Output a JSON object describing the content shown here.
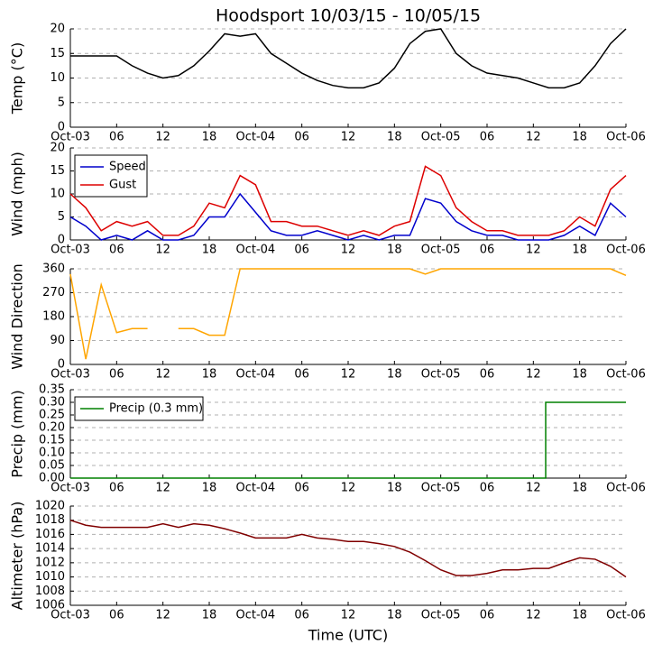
{
  "chart_data": [
    {
      "type": "line",
      "title": "Hoodsport 10/03/15 - 10/05/15",
      "ylabel": "Temp (°C)",
      "x": [
        0,
        2,
        4,
        6,
        8,
        10,
        12,
        14,
        16,
        18,
        20,
        22,
        24,
        26,
        28,
        30,
        32,
        34,
        36,
        38,
        40,
        42,
        44,
        46,
        48,
        50,
        52,
        54,
        56,
        58,
        60,
        62,
        64,
        66,
        68,
        70,
        72
      ],
      "series": [
        {
          "name": "Temp",
          "color": "#000000",
          "values": [
            14.5,
            14.5,
            14.5,
            14.5,
            12.5,
            11,
            10,
            10.5,
            12.5,
            15.5,
            19,
            18.5,
            19,
            15,
            13,
            11,
            9.5,
            8.5,
            8,
            8,
            9,
            12,
            17,
            19.5,
            20,
            15,
            12.5,
            11,
            10.5,
            10,
            9,
            8,
            8,
            9,
            12.5,
            17,
            20
          ]
        }
      ],
      "xlim": [
        0,
        72
      ],
      "xticks": [
        {
          "value": 0,
          "label": "Oct-03"
        },
        {
          "value": 6,
          "label": "06"
        },
        {
          "value": 12,
          "label": "12"
        },
        {
          "value": 18,
          "label": "18"
        },
        {
          "value": 24,
          "label": "Oct-04"
        },
        {
          "value": 30,
          "label": "06"
        },
        {
          "value": 36,
          "label": "12"
        },
        {
          "value": 42,
          "label": "18"
        },
        {
          "value": 48,
          "label": "Oct-05"
        },
        {
          "value": 54,
          "label": "06"
        },
        {
          "value": 60,
          "label": "12"
        },
        {
          "value": 66,
          "label": "18"
        },
        {
          "value": 72,
          "label": "Oct-06"
        }
      ],
      "ylim": [
        0,
        20
      ],
      "yticks": [
        0,
        5,
        10,
        15,
        20
      ],
      "grid": true
    },
    {
      "type": "line",
      "ylabel": "Wind (mph)",
      "x": [
        0,
        2,
        4,
        6,
        8,
        10,
        12,
        14,
        16,
        18,
        20,
        22,
        24,
        26,
        28,
        30,
        32,
        34,
        36,
        38,
        40,
        42,
        44,
        46,
        48,
        50,
        52,
        54,
        56,
        58,
        60,
        62,
        64,
        66,
        68,
        70,
        72
      ],
      "series": [
        {
          "name": "Speed",
          "color": "#0000cc",
          "values": [
            5,
            3,
            0,
            1,
            0,
            2,
            0,
            0,
            1,
            5,
            5,
            10,
            6,
            2,
            1,
            1,
            2,
            1,
            0,
            1,
            0,
            1,
            1,
            9,
            8,
            4,
            2,
            1,
            1,
            0,
            0,
            0,
            1,
            3,
            1,
            8,
            5
          ]
        },
        {
          "name": "Gust",
          "color": "#dd0000",
          "values": [
            10,
            7,
            2,
            4,
            3,
            4,
            1,
            1,
            3,
            8,
            7,
            14,
            12,
            4,
            4,
            3,
            3,
            2,
            1,
            2,
            1,
            3,
            4,
            16,
            14,
            7,
            4,
            2,
            2,
            1,
            1,
            1,
            2,
            5,
            3,
            11,
            14
          ]
        }
      ],
      "xlim": [
        0,
        72
      ],
      "xticks": [
        {
          "value": 0,
          "label": "Oct-03"
        },
        {
          "value": 6,
          "label": "06"
        },
        {
          "value": 12,
          "label": "12"
        },
        {
          "value": 18,
          "label": "18"
        },
        {
          "value": 24,
          "label": "Oct-04"
        },
        {
          "value": 30,
          "label": "06"
        },
        {
          "value": 36,
          "label": "12"
        },
        {
          "value": 42,
          "label": "18"
        },
        {
          "value": 48,
          "label": "Oct-05"
        },
        {
          "value": 54,
          "label": "06"
        },
        {
          "value": 60,
          "label": "12"
        },
        {
          "value": 66,
          "label": "18"
        },
        {
          "value": 72,
          "label": "Oct-06"
        }
      ],
      "ylim": [
        0,
        20
      ],
      "yticks": [
        0,
        5,
        10,
        15,
        20
      ],
      "grid": true,
      "legend": "upper left"
    },
    {
      "type": "line",
      "ylabel": "Wind Direction",
      "x": [
        0,
        2,
        4,
        6,
        8,
        10,
        12,
        14,
        16,
        18,
        20,
        22,
        24,
        26,
        28,
        30,
        32,
        34,
        36,
        38,
        40,
        42,
        44,
        46,
        48,
        50,
        52,
        54,
        56,
        58,
        60,
        62,
        64,
        66,
        68,
        70,
        72
      ],
      "series": [
        {
          "name": "Direction",
          "color": "#ffa500",
          "values": [
            340,
            20,
            300,
            120,
            135,
            135,
            null,
            135,
            135,
            110,
            110,
            360,
            360,
            360,
            360,
            360,
            360,
            360,
            360,
            360,
            360,
            360,
            360,
            340,
            360,
            360,
            360,
            360,
            360,
            360,
            360,
            360,
            360,
            360,
            360,
            360,
            335
          ]
        }
      ],
      "xlim": [
        0,
        72
      ],
      "xticks": [
        {
          "value": 0,
          "label": "Oct-03"
        },
        {
          "value": 6,
          "label": "06"
        },
        {
          "value": 12,
          "label": "12"
        },
        {
          "value": 18,
          "label": "18"
        },
        {
          "value": 24,
          "label": "Oct-04"
        },
        {
          "value": 30,
          "label": "06"
        },
        {
          "value": 36,
          "label": "12"
        },
        {
          "value": 42,
          "label": "18"
        },
        {
          "value": 48,
          "label": "Oct-05"
        },
        {
          "value": 54,
          "label": "06"
        },
        {
          "value": 60,
          "label": "12"
        },
        {
          "value": 66,
          "label": "18"
        },
        {
          "value": 72,
          "label": "Oct-06"
        }
      ],
      "ylim": [
        0,
        360
      ],
      "yticks": [
        0,
        90,
        180,
        270,
        360
      ],
      "grid": true
    },
    {
      "type": "line",
      "ylabel": "Precip (mm)",
      "x": [
        0,
        61.6,
        61.6,
        72
      ],
      "series": [
        {
          "name": "Precip (0.3 mm)",
          "color": "#008000",
          "values": [
            0,
            0,
            0.3,
            0.3
          ]
        }
      ],
      "xlim": [
        0,
        72
      ],
      "xticks": [
        {
          "value": 0,
          "label": "Oct-03"
        },
        {
          "value": 6,
          "label": "06"
        },
        {
          "value": 12,
          "label": "12"
        },
        {
          "value": 18,
          "label": "18"
        },
        {
          "value": 24,
          "label": "Oct-04"
        },
        {
          "value": 30,
          "label": "06"
        },
        {
          "value": 36,
          "label": "12"
        },
        {
          "value": 42,
          "label": "18"
        },
        {
          "value": 48,
          "label": "Oct-05"
        },
        {
          "value": 54,
          "label": "06"
        },
        {
          "value": 60,
          "label": "12"
        },
        {
          "value": 66,
          "label": "18"
        },
        {
          "value": 72,
          "label": "Oct-06"
        }
      ],
      "ylim": [
        0,
        0.35
      ],
      "yticks": [
        {
          "value": 0,
          "label": "0.00"
        },
        {
          "value": 0.05,
          "label": "0.05"
        },
        {
          "value": 0.1,
          "label": "0.10"
        },
        {
          "value": 0.15,
          "label": "0.15"
        },
        {
          "value": 0.2,
          "label": "0.20"
        },
        {
          "value": 0.25,
          "label": "0.25"
        },
        {
          "value": 0.3,
          "label": "0.30"
        },
        {
          "value": 0.35,
          "label": "0.35"
        }
      ],
      "grid": true,
      "legend": "upper left"
    },
    {
      "type": "line",
      "ylabel": "Altimeter (hPa)",
      "xlabel": "Time (UTC)",
      "x": [
        0,
        2,
        4,
        6,
        8,
        10,
        12,
        14,
        16,
        18,
        20,
        22,
        24,
        26,
        28,
        30,
        32,
        34,
        36,
        38,
        40,
        42,
        44,
        46,
        48,
        50,
        52,
        54,
        56,
        58,
        60,
        62,
        64,
        66,
        68,
        70,
        72
      ],
      "series": [
        {
          "name": "Altimeter",
          "color": "#800000",
          "values": [
            1018,
            1017.3,
            1017,
            1017,
            1017,
            1017,
            1017.5,
            1017,
            1017.5,
            1017.3,
            1016.8,
            1016.2,
            1015.5,
            1015.5,
            1015.5,
            1016,
            1015.5,
            1015.3,
            1015,
            1015,
            1014.7,
            1014.3,
            1013.5,
            1012.3,
            1011,
            1010.2,
            1010.2,
            1010.5,
            1011,
            1011,
            1011.2,
            1011.2,
            1012,
            1012.7,
            1012.5,
            1011.5,
            1010
          ]
        }
      ],
      "xlim": [
        0,
        72
      ],
      "xticks": [
        {
          "value": 0,
          "label": "Oct-03"
        },
        {
          "value": 6,
          "label": "06"
        },
        {
          "value": 12,
          "label": "12"
        },
        {
          "value": 18,
          "label": "18"
        },
        {
          "value": 24,
          "label": "Oct-04"
        },
        {
          "value": 30,
          "label": "06"
        },
        {
          "value": 36,
          "label": "12"
        },
        {
          "value": 42,
          "label": "18"
        },
        {
          "value": 48,
          "label": "Oct-05"
        },
        {
          "value": 54,
          "label": "06"
        },
        {
          "value": 60,
          "label": "12"
        },
        {
          "value": 66,
          "label": "18"
        },
        {
          "value": 72,
          "label": "Oct-06"
        }
      ],
      "ylim": [
        1006,
        1020
      ],
      "yticks": [
        1006,
        1008,
        1010,
        1012,
        1014,
        1016,
        1018,
        1020
      ],
      "grid": true
    }
  ]
}
